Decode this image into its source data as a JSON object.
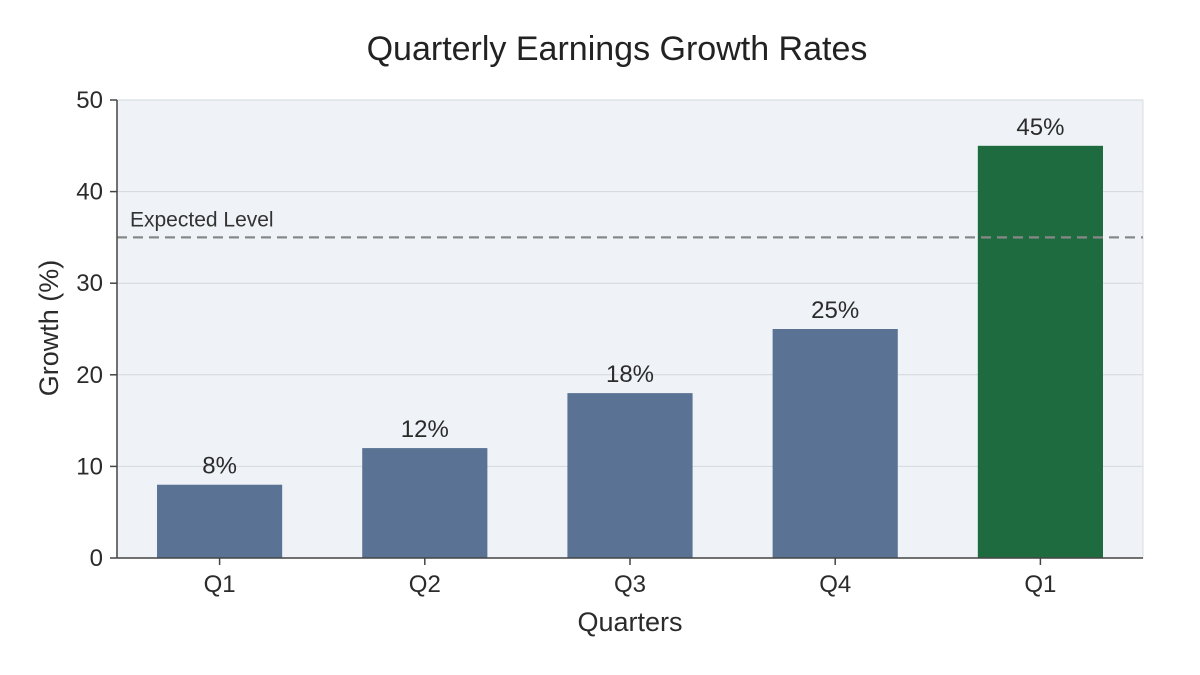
{
  "chart_data": {
    "type": "bar",
    "title": "Quarterly Earnings Growth Rates",
    "xlabel": "Quarters",
    "ylabel": "Growth (%)",
    "categories": [
      "Q1",
      "Q2",
      "Q3",
      "Q4",
      "Q1"
    ],
    "values": [
      8,
      12,
      18,
      25,
      45
    ],
    "data_labels": [
      "8%",
      "12%",
      "18%",
      "25%",
      "45%"
    ],
    "bar_colors": [
      "#5a7394",
      "#5a7394",
      "#5a7394",
      "#5a7394",
      "#1e6b3f"
    ],
    "ylim": [
      0,
      50
    ],
    "yticks": [
      0,
      10,
      20,
      30,
      40,
      50
    ],
    "grid": "horizontal",
    "plot_background": "#eff3f7",
    "reference_line": {
      "label": "Expected Level",
      "value": 35,
      "style": "dashed",
      "color": "#888888"
    }
  }
}
